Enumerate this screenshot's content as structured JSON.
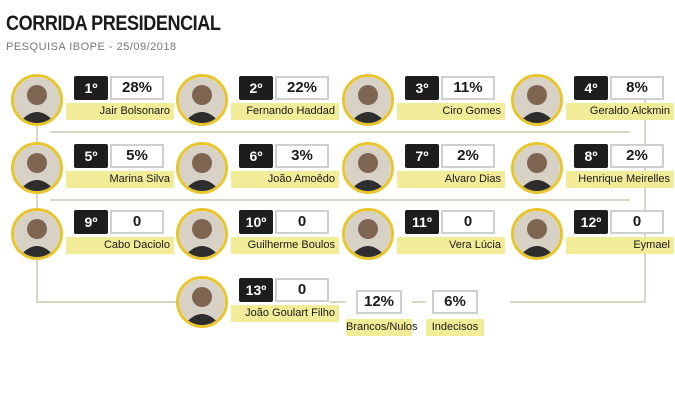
{
  "header": {
    "title": "CORRIDA PRESIDENCIAL",
    "subtitle": "PESQUISA IBOPE - 25/09/2018"
  },
  "colors": {
    "accent": "#e8c52a",
    "label_bg": "#f2eb97",
    "rank_bg": "#1d1d1d",
    "connector": "#d6d6c4"
  },
  "candidates": [
    {
      "rank": "1º",
      "name": "Jair Bolsonaro",
      "value": "28%"
    },
    {
      "rank": "2º",
      "name": "Fernando Haddad",
      "value": "22%"
    },
    {
      "rank": "3º",
      "name": "Ciro Gomes",
      "value": "11%"
    },
    {
      "rank": "4º",
      "name": "Geraldo Alckmin",
      "value": "8%"
    },
    {
      "rank": "5º",
      "name": "Marina Silva",
      "value": "5%"
    },
    {
      "rank": "6º",
      "name": "João Amoêdo",
      "value": "3%"
    },
    {
      "rank": "7º",
      "name": "Alvaro Dias",
      "value": "2%"
    },
    {
      "rank": "8º",
      "name": "Henrique Meirelles",
      "value": "2%"
    },
    {
      "rank": "9º",
      "name": "Cabo Daciolo",
      "value": "0"
    },
    {
      "rank": "10º",
      "name": "Guilherme Boulos",
      "value": "0"
    },
    {
      "rank": "11º",
      "name": "Vera Lúcia",
      "value": "0"
    },
    {
      "rank": "12º",
      "name": "Eymael",
      "value": "0"
    },
    {
      "rank": "13º",
      "name": "João Goulart Filho",
      "value": "0"
    }
  ],
  "others": [
    {
      "label": "Brancos/Nulos",
      "value": "12%"
    },
    {
      "label": "Indecisos",
      "value": "6%"
    }
  ]
}
